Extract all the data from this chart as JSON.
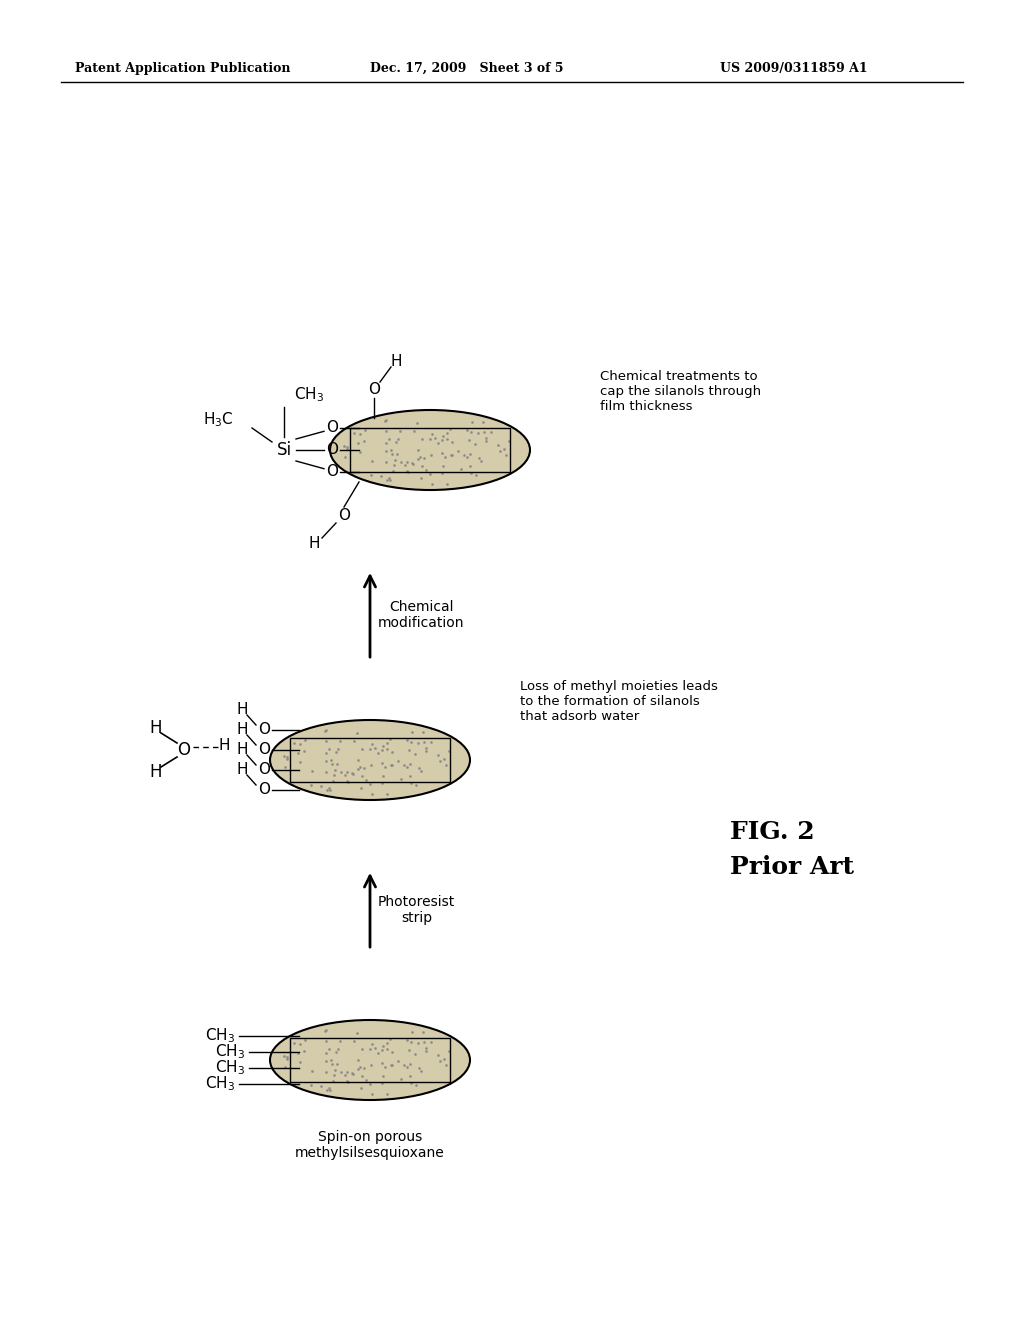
{
  "header_left": "Patent Application Publication",
  "header_mid": "Dec. 17, 2009   Sheet 3 of 5",
  "header_right": "US 2009/0311859 A1",
  "background_color": "#ffffff",
  "stage1_label": "Spin-on porous\nmethylsilsesquioxane",
  "stage2_label": "Photoresist\nstrip",
  "stage3_label": "Chemical\nmodification",
  "stage2_desc": "Loss of methyl moieties leads\nto the formation of silanols\nthat adsorb water",
  "stage3_desc": "Chemical treatments to\ncap the silanols through\nfilm thickness",
  "fig_label1": "FIG. 2",
  "fig_label2": "Prior Art",
  "film_face_color": "#d4ccaa",
  "film_edge_color": "#000000",
  "dot_color": "#888888"
}
